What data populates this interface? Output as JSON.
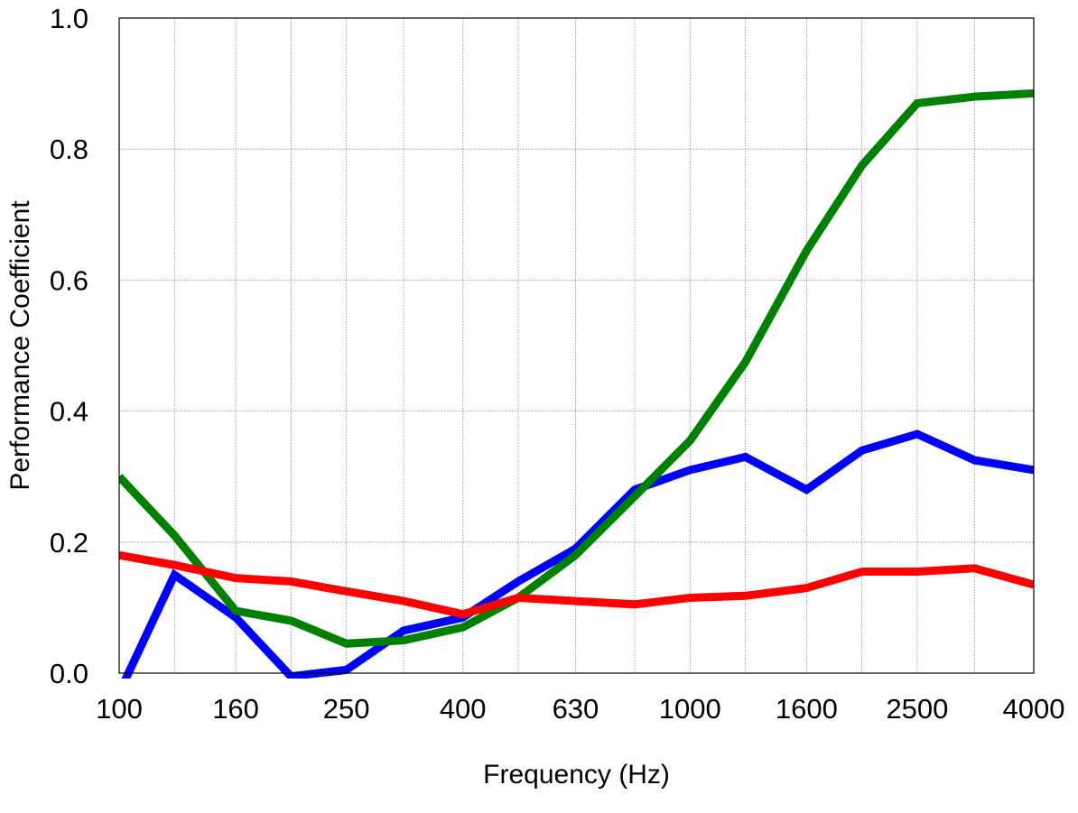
{
  "chart_data": {
    "type": "line",
    "title": "",
    "xlabel": "Frequency (Hz)",
    "ylabel": "Performance Coefficient",
    "x_scale": "log",
    "xlim": [
      100,
      4000
    ],
    "ylim": [
      0,
      1.0
    ],
    "grid": true,
    "legend": "none",
    "x_ticks": [
      100,
      160,
      250,
      400,
      630,
      1000,
      1600,
      2500,
      4000
    ],
    "x_tick_labels": [
      "100",
      "160",
      "250",
      "400",
      "630",
      "1000",
      "1600",
      "2500",
      "4000"
    ],
    "x_minor_grid": [
      125,
      200,
      315,
      500,
      800,
      1250,
      2000,
      3150
    ],
    "y_ticks": [
      0.0,
      0.2,
      0.4,
      0.6,
      0.8,
      1.0
    ],
    "y_tick_labels": [
      "0.0",
      "0.2",
      "0.4",
      "0.6",
      "0.8",
      "1.0"
    ],
    "x": [
      100,
      125,
      160,
      200,
      250,
      315,
      400,
      500,
      630,
      800,
      1000,
      1250,
      1600,
      2000,
      2500,
      3150,
      4000
    ],
    "series": [
      {
        "color": "#0000ff",
        "values": [
          -0.03,
          0.15,
          0.085,
          -0.005,
          0.005,
          0.065,
          0.085,
          0.14,
          0.19,
          0.28,
          0.31,
          0.33,
          0.28,
          0.34,
          0.365,
          0.325,
          0.31
        ]
      },
      {
        "color": "#008000",
        "values": [
          0.3,
          0.21,
          0.095,
          0.08,
          0.045,
          0.05,
          0.07,
          0.115,
          0.18,
          0.27,
          0.355,
          0.475,
          0.645,
          0.775,
          0.87,
          0.88,
          0.885
        ]
      },
      {
        "color": "#ff0000",
        "values": [
          0.18,
          0.165,
          0.145,
          0.14,
          0.125,
          0.11,
          0.09,
          0.115,
          0.11,
          0.105,
          0.115,
          0.118,
          0.13,
          0.155,
          0.155,
          0.16,
          0.135
        ]
      }
    ]
  }
}
